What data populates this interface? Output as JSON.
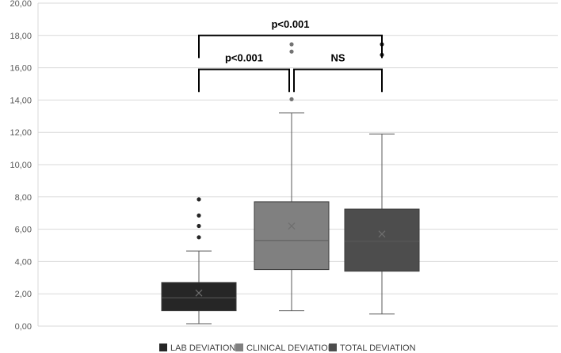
{
  "chart_data": {
    "type": "boxplot",
    "title": "",
    "xlabel": "",
    "ylabel": "",
    "ylim": [
      0,
      20
    ],
    "y_tick_labels": [
      "0,00",
      "2,00",
      "4,00",
      "6,00",
      "8,00",
      "10,00",
      "12,00",
      "14,00",
      "16,00",
      "18,00",
      "20,00"
    ],
    "grid": true,
    "legend_position": "bottom",
    "series": [
      {
        "name": "LAB DEVIATION",
        "color": "#262626",
        "whisker_low": 0.15,
        "q1": 0.95,
        "median": 1.75,
        "q3": 2.7,
        "whisker_high": 4.65,
        "mean": 2.05,
        "outliers": [
          5.5,
          6.2,
          6.85,
          7.85
        ]
      },
      {
        "name": "CLINICAL DEVIATION",
        "color": "#808080",
        "whisker_low": 0.95,
        "q1": 3.5,
        "median": 5.3,
        "q3": 7.7,
        "whisker_high": 13.2,
        "mean": 6.2,
        "outliers": [
          14.05,
          17.0,
          17.45
        ]
      },
      {
        "name": "TOTAL DEVIATION",
        "color": "#4d4d4d",
        "whisker_low": 0.75,
        "q1": 3.4,
        "median": 5.25,
        "q3": 7.25,
        "whisker_high": 11.9,
        "mean": 5.7,
        "outliers": [
          16.8,
          17.45
        ]
      }
    ],
    "annotations": [
      {
        "label": "p<0.001",
        "from": 0,
        "to": 2,
        "level": 18.0
      },
      {
        "label": "p<0.001",
        "from": 0,
        "to": 1,
        "level": 15.9
      },
      {
        "label": "NS",
        "from": 1,
        "to": 2,
        "level": 15.9
      }
    ]
  }
}
